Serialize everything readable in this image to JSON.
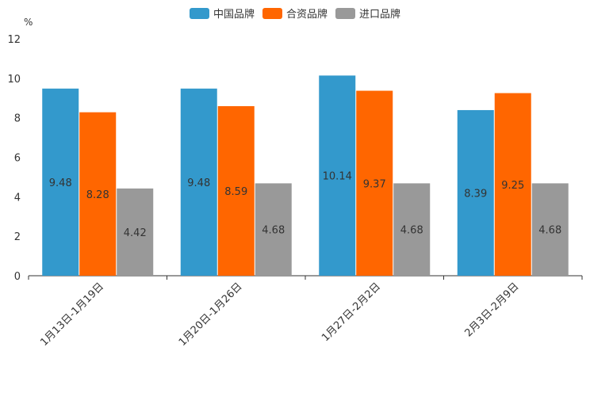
{
  "chart_data": {
    "type": "bar",
    "unit": "%",
    "ylim": [
      0,
      12
    ],
    "yticks": [
      "0",
      "2",
      "4",
      "6",
      "8",
      "10",
      "12"
    ],
    "categories": [
      "1月13日-1月19日",
      "1月20日-1月26日",
      "1月27日-2月2日",
      "2月3日-2月9日"
    ],
    "series": [
      {
        "name": "中国品牌",
        "color": "#3399cc",
        "values": [
          9.48,
          9.48,
          10.14,
          8.39
        ]
      },
      {
        "name": "合资品牌",
        "color": "#ff6600",
        "values": [
          8.28,
          8.59,
          9.37,
          9.25
        ]
      },
      {
        "name": "进口品牌",
        "color": "#999999",
        "values": [
          4.42,
          4.68,
          4.68,
          4.68
        ]
      }
    ],
    "data_labels": [
      [
        "9.48",
        "9.48",
        "10.14",
        "8.39"
      ],
      [
        "8.28",
        "8.59",
        "9.37",
        "9.25"
      ],
      [
        "4.42",
        "4.68",
        "4.68",
        "4.68"
      ]
    ]
  }
}
